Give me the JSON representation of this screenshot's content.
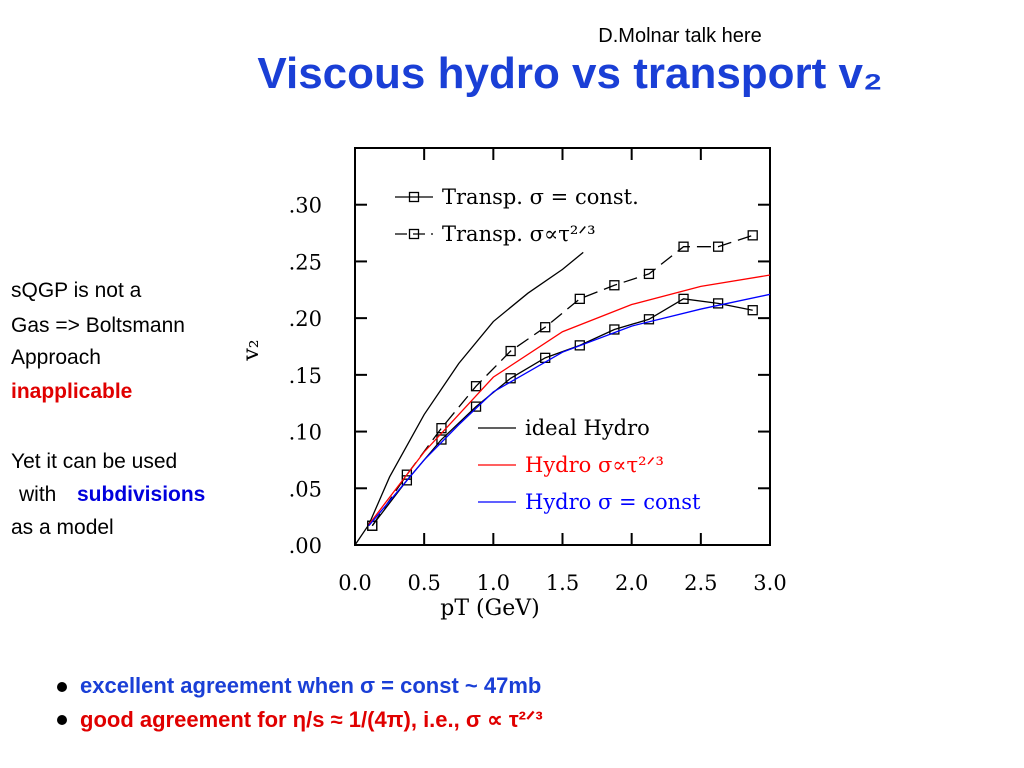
{
  "slide": {
    "note": "D.Molnar talk here",
    "title": "Viscous hydro vs transport v₂",
    "side_text": {
      "line1": "sQGP is not a",
      "line2": "Gas => Boltsmann",
      "line3": "Approach",
      "line4": "inapplicable",
      "line5": "Yet it can be used",
      "line6a": "with",
      "line6b": "subdivisions",
      "line7": "as a model"
    },
    "bullets": [
      "excellent agreement when σ = const ~ 47mb",
      "good agreement for η/s ≈ 1/(4π), i.e., σ ∝ τ²ᐟ³"
    ]
  },
  "chart_data": {
    "type": "line",
    "x_label": "pT (GeV)",
    "y_label": "v₂",
    "xlim": [
      0,
      3
    ],
    "ylim": [
      0,
      0.35
    ],
    "xticks": [
      {
        "value": 0,
        "label": "0.0"
      },
      {
        "value": 0.5,
        "label": "0.5"
      },
      {
        "value": 1,
        "label": "1.0"
      },
      {
        "value": 1.5,
        "label": "1.5"
      },
      {
        "value": 2,
        "label": "2.0"
      },
      {
        "value": 2.5,
        "label": "2.5"
      },
      {
        "value": 3,
        "label": "3.0"
      }
    ],
    "yticks": [
      {
        "value": 0,
        "label": ".00"
      },
      {
        "value": 0.05,
        "label": ".05"
      },
      {
        "value": 0.1,
        "label": ".10"
      },
      {
        "value": 0.15,
        "label": ".15"
      },
      {
        "value": 0.2,
        "label": ".20"
      },
      {
        "value": 0.25,
        "label": ".25"
      },
      {
        "value": 0.3,
        "label": ".30"
      }
    ],
    "series": [
      {
        "name": "Transp. σ = const.",
        "color": "#000000",
        "linestyle": "solid",
        "marker": "square",
        "legend": "upper left",
        "x": [
          0.125,
          0.375,
          0.625,
          0.875,
          1.125,
          1.375,
          1.625,
          1.875,
          2.125,
          2.375,
          2.625,
          2.875
        ],
        "values": [
          0.017,
          0.057,
          0.093,
          0.122,
          0.147,
          0.165,
          0.176,
          0.19,
          0.199,
          0.217,
          0.213,
          0.207
        ]
      },
      {
        "name": "Transp. σ∝τ²ᐟ³",
        "color": "#000000",
        "linestyle": "dashed",
        "marker": "square",
        "legend": "upper left",
        "x": [
          0.125,
          0.375,
          0.625,
          0.875,
          1.125,
          1.375,
          1.625,
          1.875,
          2.125,
          2.375,
          2.625,
          2.875
        ],
        "values": [
          0.017,
          0.062,
          0.103,
          0.14,
          0.171,
          0.192,
          0.217,
          0.229,
          0.239,
          0.263,
          0.263,
          0.273
        ]
      },
      {
        "name": "ideal Hydro",
        "color": "#000000",
        "linestyle": "solid",
        "legend": "lower right",
        "x": [
          0,
          0.1,
          0.25,
          0.5,
          0.75,
          1,
          1.25,
          1.5,
          1.65
        ],
        "values": [
          0,
          0.018,
          0.06,
          0.115,
          0.16,
          0.197,
          0.222,
          0.243,
          0.258
        ]
      },
      {
        "name": "Hydro σ∝τ²ᐟ³",
        "color": "#ff0000",
        "linestyle": "solid",
        "legend": "lower right",
        "x": [
          0.1,
          0.3,
          0.5,
          0.75,
          1,
          1.5,
          2,
          2.5,
          3
        ],
        "values": [
          0.018,
          0.05,
          0.082,
          0.115,
          0.148,
          0.188,
          0.212,
          0.228,
          0.238
        ]
      },
      {
        "name": "Hydro σ = const",
        "color": "#0000ff",
        "linestyle": "solid",
        "legend": "lower right",
        "x": [
          0.1,
          0.3,
          0.5,
          0.75,
          1,
          1.5,
          2,
          2.5,
          3
        ],
        "values": [
          0.017,
          0.046,
          0.075,
          0.106,
          0.135,
          0.17,
          0.193,
          0.208,
          0.221
        ]
      }
    ]
  }
}
